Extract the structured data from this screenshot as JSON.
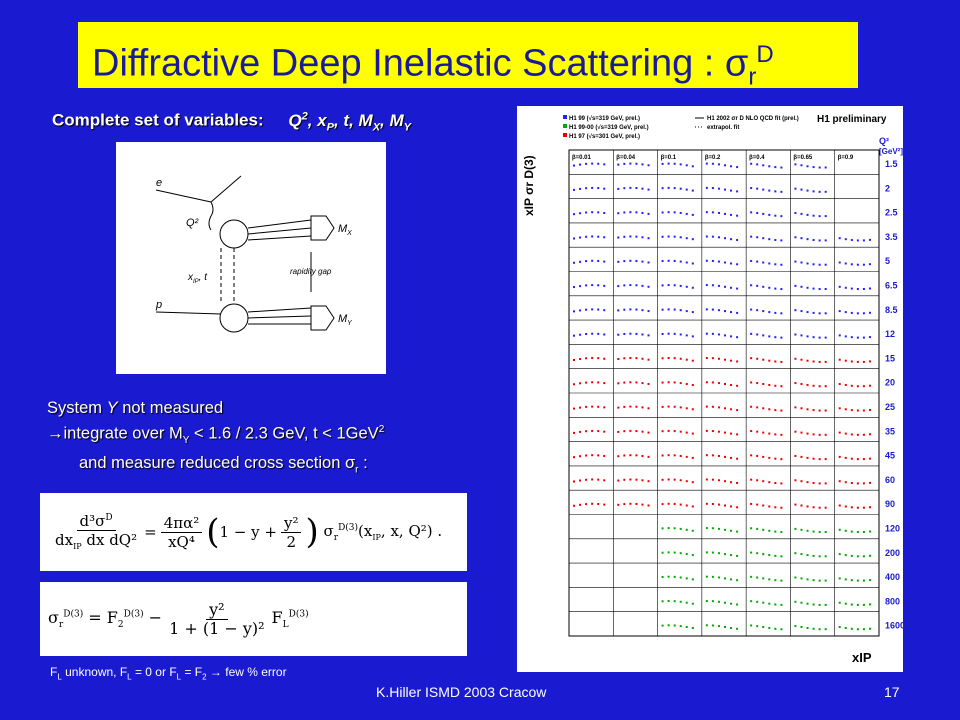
{
  "title": {
    "main": "Diffractive Deep Inelastic Scattering : σ",
    "sub": "r",
    "sup": "D"
  },
  "variables": {
    "label": "Complete set of variables:",
    "q": "Q",
    "q_sup": "2",
    "xp": ", x",
    "xp_sub": "P",
    "t": ", t, M",
    "mx_sub": "X",
    "my": ", M",
    "my_sub": "Y"
  },
  "diagram": {
    "e": "e",
    "q2": "Q²",
    "mx": "M",
    "mx_sub": "X",
    "gap": "rapidity gap",
    "xt": "x",
    "xt_sub": "IP",
    "xt_rest": ", t",
    "p": "p",
    "my": "M",
    "my_sub": "Y"
  },
  "system": {
    "line1a": "System ",
    "line1b": "Y",
    "line1c": " not measured",
    "arrow": "→",
    "line2a": "integrate over M",
    "line2b": "Y",
    "line2c": " < 1.6 / 2.3 GeV, t < 1GeV",
    "line2d": "2",
    "line3a": "and measure reduced cross section  σ",
    "line3b": "r",
    "line3c": " :"
  },
  "fl_note": {
    "a": "F",
    "b": "L",
    "c": " unknown, F",
    "d": "L",
    "e": " = 0 or F",
    "f": "L",
    "g": " = F",
    "h": "2",
    "i": " → few % error"
  },
  "footer": "K.Hiller  ISMD 2003   Cracow",
  "page_number": "17",
  "plot": {
    "header": "H1 preliminary",
    "legend": [
      "H1 99 (√s=319 GeV, prel.)",
      "H1 99-00 (√s=319 GeV, prel.)",
      "H1 97 (√s=301 GeV, prel.)",
      "H1 2002 σr D NLO QCD fit (prel.)",
      "extrapol. fit"
    ],
    "betas": [
      "β=0.01",
      "β=0.04",
      "β=0.1",
      "β=0.2",
      "β=0.4",
      "β=0.65",
      "β=0.9"
    ],
    "q2_header": "Q²",
    "q2_unit": "[GeV²]",
    "q2_values": [
      "1.5",
      "2",
      "2.5",
      "3.5",
      "5",
      "6.5",
      "8.5",
      "12",
      "15",
      "20",
      "25",
      "35",
      "45",
      "60",
      "90",
      "120",
      "200",
      "400",
      "800",
      "1600"
    ],
    "ylabel": "xIP σr D(3)",
    "xlabel": "xIP"
  }
}
